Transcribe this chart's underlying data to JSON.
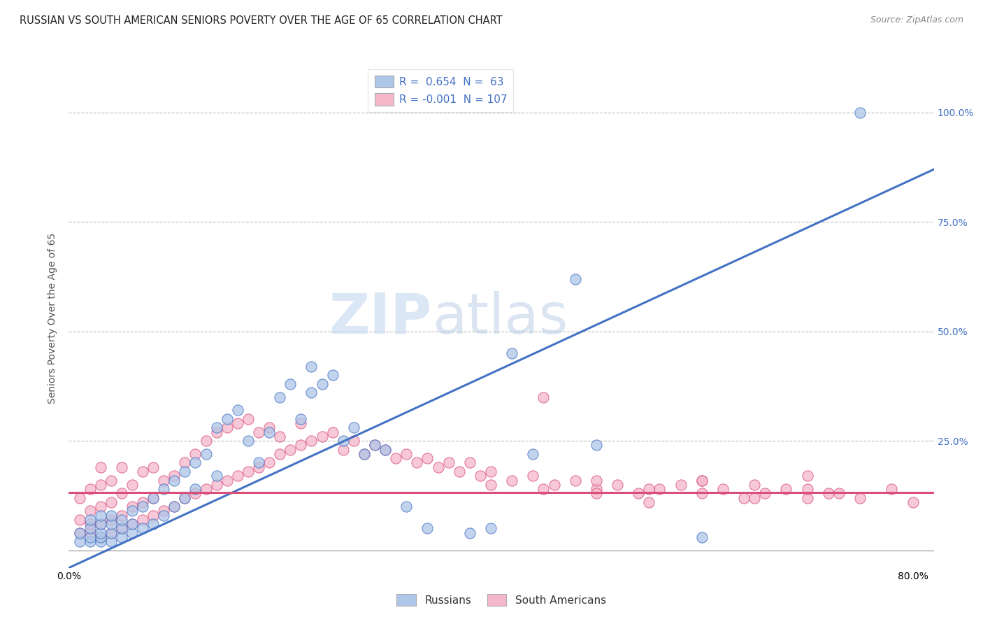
{
  "title": "RUSSIAN VS SOUTH AMERICAN SENIORS POVERTY OVER THE AGE OF 65 CORRELATION CHART",
  "source": "Source: ZipAtlas.com",
  "ylabel": "Seniors Poverty Over the Age of 65",
  "xlim": [
    0.0,
    0.82
  ],
  "ylim": [
    -0.04,
    1.1
  ],
  "yticks": [
    0.0,
    0.25,
    0.5,
    0.75,
    1.0
  ],
  "yticklabels": [
    "",
    "25.0%",
    "50.0%",
    "75.0%",
    "100.0%"
  ],
  "russian_R": 0.654,
  "russian_N": 63,
  "southam_R": -0.001,
  "southam_N": 107,
  "russian_color": "#aec6e8",
  "southam_color": "#f5b8cb",
  "russian_line_color": "#4472c4",
  "southam_line_color": "#d94f7a",
  "watermark_zip": "ZIP",
  "watermark_atlas": "atlas",
  "background_color": "#ffffff",
  "grid_color": "#bbbbbb",
  "title_color": "#222222",
  "axis_label_color": "#555555",
  "right_tick_color": "#4472c4",
  "legend_russian_label": "Russians",
  "legend_southam_label": "South Americans",
  "russian_line_x0": 0.0,
  "russian_line_y0": -0.04,
  "russian_line_x1": 0.82,
  "russian_line_y1": 0.87,
  "southam_line_x0": 0.0,
  "southam_line_y0": 0.132,
  "southam_line_x1": 0.82,
  "southam_line_y1": 0.132,
  "russian_scatter_x": [
    0.01,
    0.01,
    0.02,
    0.02,
    0.02,
    0.02,
    0.03,
    0.03,
    0.03,
    0.03,
    0.03,
    0.04,
    0.04,
    0.04,
    0.04,
    0.05,
    0.05,
    0.05,
    0.06,
    0.06,
    0.06,
    0.07,
    0.07,
    0.08,
    0.08,
    0.09,
    0.09,
    0.1,
    0.1,
    0.11,
    0.11,
    0.12,
    0.12,
    0.13,
    0.14,
    0.14,
    0.15,
    0.16,
    0.17,
    0.18,
    0.19,
    0.2,
    0.21,
    0.22,
    0.23,
    0.23,
    0.24,
    0.25,
    0.26,
    0.27,
    0.28,
    0.29,
    0.3,
    0.32,
    0.34,
    0.38,
    0.4,
    0.42,
    0.44,
    0.48,
    0.5,
    0.6,
    0.75
  ],
  "russian_scatter_y": [
    0.02,
    0.04,
    0.02,
    0.03,
    0.05,
    0.07,
    0.02,
    0.03,
    0.04,
    0.06,
    0.08,
    0.02,
    0.04,
    0.06,
    0.08,
    0.03,
    0.05,
    0.07,
    0.04,
    0.06,
    0.09,
    0.05,
    0.1,
    0.06,
    0.12,
    0.08,
    0.14,
    0.1,
    0.16,
    0.12,
    0.18,
    0.14,
    0.2,
    0.22,
    0.17,
    0.28,
    0.3,
    0.32,
    0.25,
    0.2,
    0.27,
    0.35,
    0.38,
    0.3,
    0.36,
    0.42,
    0.38,
    0.4,
    0.25,
    0.28,
    0.22,
    0.24,
    0.23,
    0.1,
    0.05,
    0.04,
    0.05,
    0.45,
    0.22,
    0.62,
    0.24,
    0.03,
    1.0
  ],
  "southam_scatter_x": [
    0.01,
    0.01,
    0.01,
    0.02,
    0.02,
    0.02,
    0.02,
    0.03,
    0.03,
    0.03,
    0.03,
    0.03,
    0.04,
    0.04,
    0.04,
    0.04,
    0.05,
    0.05,
    0.05,
    0.05,
    0.06,
    0.06,
    0.06,
    0.07,
    0.07,
    0.07,
    0.08,
    0.08,
    0.08,
    0.09,
    0.09,
    0.1,
    0.1,
    0.11,
    0.11,
    0.12,
    0.12,
    0.13,
    0.13,
    0.14,
    0.14,
    0.15,
    0.15,
    0.16,
    0.16,
    0.17,
    0.17,
    0.18,
    0.18,
    0.19,
    0.19,
    0.2,
    0.2,
    0.21,
    0.22,
    0.22,
    0.23,
    0.24,
    0.25,
    0.26,
    0.27,
    0.28,
    0.29,
    0.3,
    0.31,
    0.32,
    0.33,
    0.34,
    0.35,
    0.36,
    0.37,
    0.38,
    0.39,
    0.4,
    0.42,
    0.44,
    0.46,
    0.48,
    0.5,
    0.52,
    0.54,
    0.56,
    0.58,
    0.6,
    0.62,
    0.64,
    0.66,
    0.68,
    0.7,
    0.72,
    0.45,
    0.5,
    0.55,
    0.6,
    0.65,
    0.7,
    0.75,
    0.78,
    0.8,
    0.65,
    0.7,
    0.73,
    0.4,
    0.45,
    0.5,
    0.55,
    0.6
  ],
  "southam_scatter_y": [
    0.04,
    0.07,
    0.12,
    0.04,
    0.06,
    0.09,
    0.14,
    0.03,
    0.06,
    0.1,
    0.15,
    0.19,
    0.04,
    0.07,
    0.11,
    0.16,
    0.05,
    0.08,
    0.13,
    0.19,
    0.06,
    0.1,
    0.15,
    0.07,
    0.11,
    0.18,
    0.08,
    0.12,
    0.19,
    0.09,
    0.16,
    0.1,
    0.17,
    0.12,
    0.2,
    0.13,
    0.22,
    0.14,
    0.25,
    0.15,
    0.27,
    0.16,
    0.28,
    0.17,
    0.29,
    0.18,
    0.3,
    0.19,
    0.27,
    0.2,
    0.28,
    0.22,
    0.26,
    0.23,
    0.24,
    0.29,
    0.25,
    0.26,
    0.27,
    0.23,
    0.25,
    0.22,
    0.24,
    0.23,
    0.21,
    0.22,
    0.2,
    0.21,
    0.19,
    0.2,
    0.18,
    0.2,
    0.17,
    0.18,
    0.16,
    0.17,
    0.15,
    0.16,
    0.14,
    0.15,
    0.13,
    0.14,
    0.15,
    0.13,
    0.14,
    0.12,
    0.13,
    0.14,
    0.12,
    0.13,
    0.35,
    0.16,
    0.14,
    0.16,
    0.12,
    0.14,
    0.12,
    0.14,
    0.11,
    0.15,
    0.17,
    0.13,
    0.15,
    0.14,
    0.13,
    0.11,
    0.16
  ]
}
